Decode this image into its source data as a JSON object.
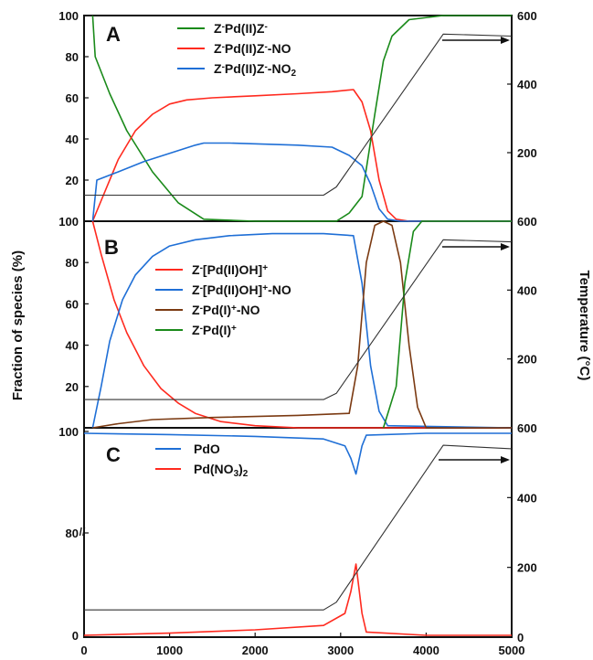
{
  "shared": {
    "y_left_label": "Fraction of species (%)",
    "y_right_label": "Temperature (°C)",
    "x_ticks": [
      "0",
      "1000",
      "2000",
      "3000",
      "4000",
      "5000"
    ],
    "colors": {
      "green": "#1a8a1a",
      "red": "#ff2a1f",
      "blue": "#1f6fd6",
      "brown": "#7b3a12",
      "black": "#333333"
    }
  },
  "chart_data": [
    {
      "panel": "A",
      "type": "line",
      "xlim": [
        0,
        5000
      ],
      "ylim_left": [
        0,
        100
      ],
      "ylim_right": [
        0,
        600
      ],
      "left_ticks": [
        "20",
        "40",
        "60",
        "80",
        "100"
      ],
      "right_ticks": [
        "200",
        "400",
        "600"
      ],
      "series": [
        {
          "name": "Z-Pd(II)Z-",
          "color": "green",
          "points": [
            [
              100,
              100
            ],
            [
              130,
              80
            ],
            [
              300,
              62
            ],
            [
              500,
              44
            ],
            [
              800,
              24
            ],
            [
              1100,
              9
            ],
            [
              1400,
              1
            ],
            [
              2000,
              0
            ],
            [
              2950,
              0
            ],
            [
              3100,
              4
            ],
            [
              3250,
              12
            ],
            [
              3400,
              52
            ],
            [
              3500,
              78
            ],
            [
              3600,
              90
            ],
            [
              3800,
              98
            ],
            [
              4200,
              100
            ],
            [
              5000,
              100
            ]
          ]
        },
        {
          "name": "Z-Pd(II)Z--NO",
          "color": "red",
          "points": [
            [
              100,
              0
            ],
            [
              200,
              10
            ],
            [
              400,
              30
            ],
            [
              600,
              44
            ],
            [
              800,
              52
            ],
            [
              1000,
              57
            ],
            [
              1200,
              59
            ],
            [
              1500,
              60
            ],
            [
              2000,
              61
            ],
            [
              2500,
              62
            ],
            [
              2900,
              63
            ],
            [
              3150,
              64
            ],
            [
              3250,
              58
            ],
            [
              3350,
              44
            ],
            [
              3450,
              20
            ],
            [
              3550,
              5
            ],
            [
              3650,
              1
            ],
            [
              3800,
              0
            ],
            [
              5000,
              0
            ]
          ]
        },
        {
          "name": "Z-Pd(II)Z--NO2",
          "color": "blue",
          "points": [
            [
              100,
              0
            ],
            [
              150,
              20
            ],
            [
              400,
              24
            ],
            [
              700,
              29
            ],
            [
              1000,
              33
            ],
            [
              1300,
              37
            ],
            [
              1400,
              38
            ],
            [
              1700,
              38
            ],
            [
              2500,
              37
            ],
            [
              2900,
              36
            ],
            [
              3100,
              32
            ],
            [
              3250,
              27
            ],
            [
              3350,
              18
            ],
            [
              3450,
              6
            ],
            [
              3550,
              1
            ],
            [
              3700,
              0
            ],
            [
              5000,
              0
            ]
          ]
        },
        {
          "name": "Temperature",
          "color": "black",
          "axis": "right",
          "points": [
            [
              0,
              76
            ],
            [
              2800,
              76
            ],
            [
              2950,
              100
            ],
            [
              4200,
              546
            ],
            [
              5000,
              540
            ]
          ]
        }
      ]
    },
    {
      "panel": "B",
      "type": "line",
      "xlim": [
        0,
        5000
      ],
      "ylim_left": [
        0,
        100
      ],
      "ylim_right": [
        0,
        600
      ],
      "left_ticks": [
        "20",
        "40",
        "60",
        "80",
        "100"
      ],
      "right_ticks": [
        "200",
        "400",
        "600"
      ],
      "series": [
        {
          "name": "Z-[Pd(II)OH]+",
          "color": "red",
          "points": [
            [
              100,
              100
            ],
            [
              200,
              84
            ],
            [
              350,
              62
            ],
            [
              500,
              46
            ],
            [
              700,
              30
            ],
            [
              900,
              19
            ],
            [
              1100,
              12
            ],
            [
              1300,
              7
            ],
            [
              1600,
              3
            ],
            [
              2000,
              1
            ],
            [
              2500,
              0
            ],
            [
              5000,
              0
            ]
          ]
        },
        {
          "name": "Z-[Pd(II)OH]+-NO",
          "color": "blue",
          "points": [
            [
              100,
              0
            ],
            [
              200,
              20
            ],
            [
              300,
              42
            ],
            [
              450,
              62
            ],
            [
              600,
              74
            ],
            [
              800,
              83
            ],
            [
              1000,
              88
            ],
            [
              1300,
              91
            ],
            [
              1700,
              93
            ],
            [
              2200,
              94
            ],
            [
              2800,
              94
            ],
            [
              3150,
              93
            ],
            [
              3250,
              70
            ],
            [
              3350,
              30
            ],
            [
              3450,
              8
            ],
            [
              3550,
              1
            ],
            [
              5000,
              0
            ]
          ]
        },
        {
          "name": "Z-Pd(I)+-NO",
          "color": "brown",
          "points": [
            [
              100,
              0
            ],
            [
              400,
              2
            ],
            [
              800,
              4
            ],
            [
              1500,
              5
            ],
            [
              2500,
              6
            ],
            [
              3100,
              7
            ],
            [
              3200,
              30
            ],
            [
              3300,
              80
            ],
            [
              3400,
              98
            ],
            [
              3500,
              100
            ],
            [
              3600,
              98
            ],
            [
              3700,
              80
            ],
            [
              3800,
              40
            ],
            [
              3900,
              10
            ],
            [
              4000,
              0
            ],
            [
              5000,
              0
            ]
          ]
        },
        {
          "name": "Z-Pd(I)+",
          "color": "green",
          "points": [
            [
              3500,
              0
            ],
            [
              3650,
              20
            ],
            [
              3750,
              70
            ],
            [
              3850,
              95
            ],
            [
              3950,
              100
            ],
            [
              5000,
              100
            ]
          ]
        },
        {
          "name": "Temperature",
          "color": "black",
          "axis": "right",
          "points": [
            [
              0,
              82
            ],
            [
              2800,
              82
            ],
            [
              2950,
              100
            ],
            [
              4200,
              546
            ],
            [
              5000,
              540
            ]
          ]
        }
      ]
    },
    {
      "panel": "C",
      "type": "line",
      "xlim": [
        0,
        5000
      ],
      "ylim_left": [
        0,
        100
      ],
      "ylim_right": [
        0,
        600
      ],
      "left_ticks": [
        "0",
        "80",
        "100"
      ],
      "right_ticks": [
        "0",
        "200",
        "400",
        "600"
      ],
      "series": [
        {
          "name": "PdO",
          "color": "blue",
          "points": [
            [
              0,
              100
            ],
            [
              1000,
              99.8
            ],
            [
              2000,
              99.5
            ],
            [
              2800,
              99.1
            ],
            [
              3050,
              98
            ],
            [
              3120,
              96
            ],
            [
              3180,
              93.5
            ],
            [
              3250,
              98
            ],
            [
              3300,
              99.7
            ],
            [
              4000,
              100
            ],
            [
              5000,
              100
            ]
          ]
        },
        {
          "name": "Pd(NO3)2",
          "color": "red",
          "points": [
            [
              0,
              0
            ],
            [
              1000,
              0.2
            ],
            [
              2000,
              0.5
            ],
            [
              2800,
              0.9
            ],
            [
              3050,
              2
            ],
            [
              3120,
              4
            ],
            [
              3180,
              6.5
            ],
            [
              3250,
              2
            ],
            [
              3300,
              0.3
            ],
            [
              4000,
              0
            ],
            [
              5000,
              0
            ]
          ]
        },
        {
          "name": "Temperature",
          "color": "black",
          "axis": "right",
          "points": [
            [
              0,
              78
            ],
            [
              2800,
              78
            ],
            [
              2950,
              100
            ],
            [
              4200,
              550
            ],
            [
              5000,
              540
            ]
          ]
        }
      ]
    }
  ],
  "panel_labels": [
    "A",
    "B",
    "C"
  ],
  "legends": {
    "A": [
      {
        "text": "Z-Pd(II)Z-",
        "color": "green"
      },
      {
        "text": "Z-Pd(II)Z--NO",
        "color": "red"
      },
      {
        "text": "Z-Pd(II)Z--NO2",
        "color": "blue"
      }
    ],
    "B": [
      {
        "text": "Z-[Pd(II)OH]+",
        "color": "red"
      },
      {
        "text": "Z-[Pd(II)OH]+-NO",
        "color": "blue"
      },
      {
        "text": "Z-Pd(I)+-NO",
        "color": "brown"
      },
      {
        "text": "Z-Pd(I)+",
        "color": "green"
      }
    ],
    "C": [
      {
        "text": "PdO",
        "color": "blue"
      },
      {
        "text": "Pd(NO3)2",
        "color": "red"
      }
    ]
  }
}
